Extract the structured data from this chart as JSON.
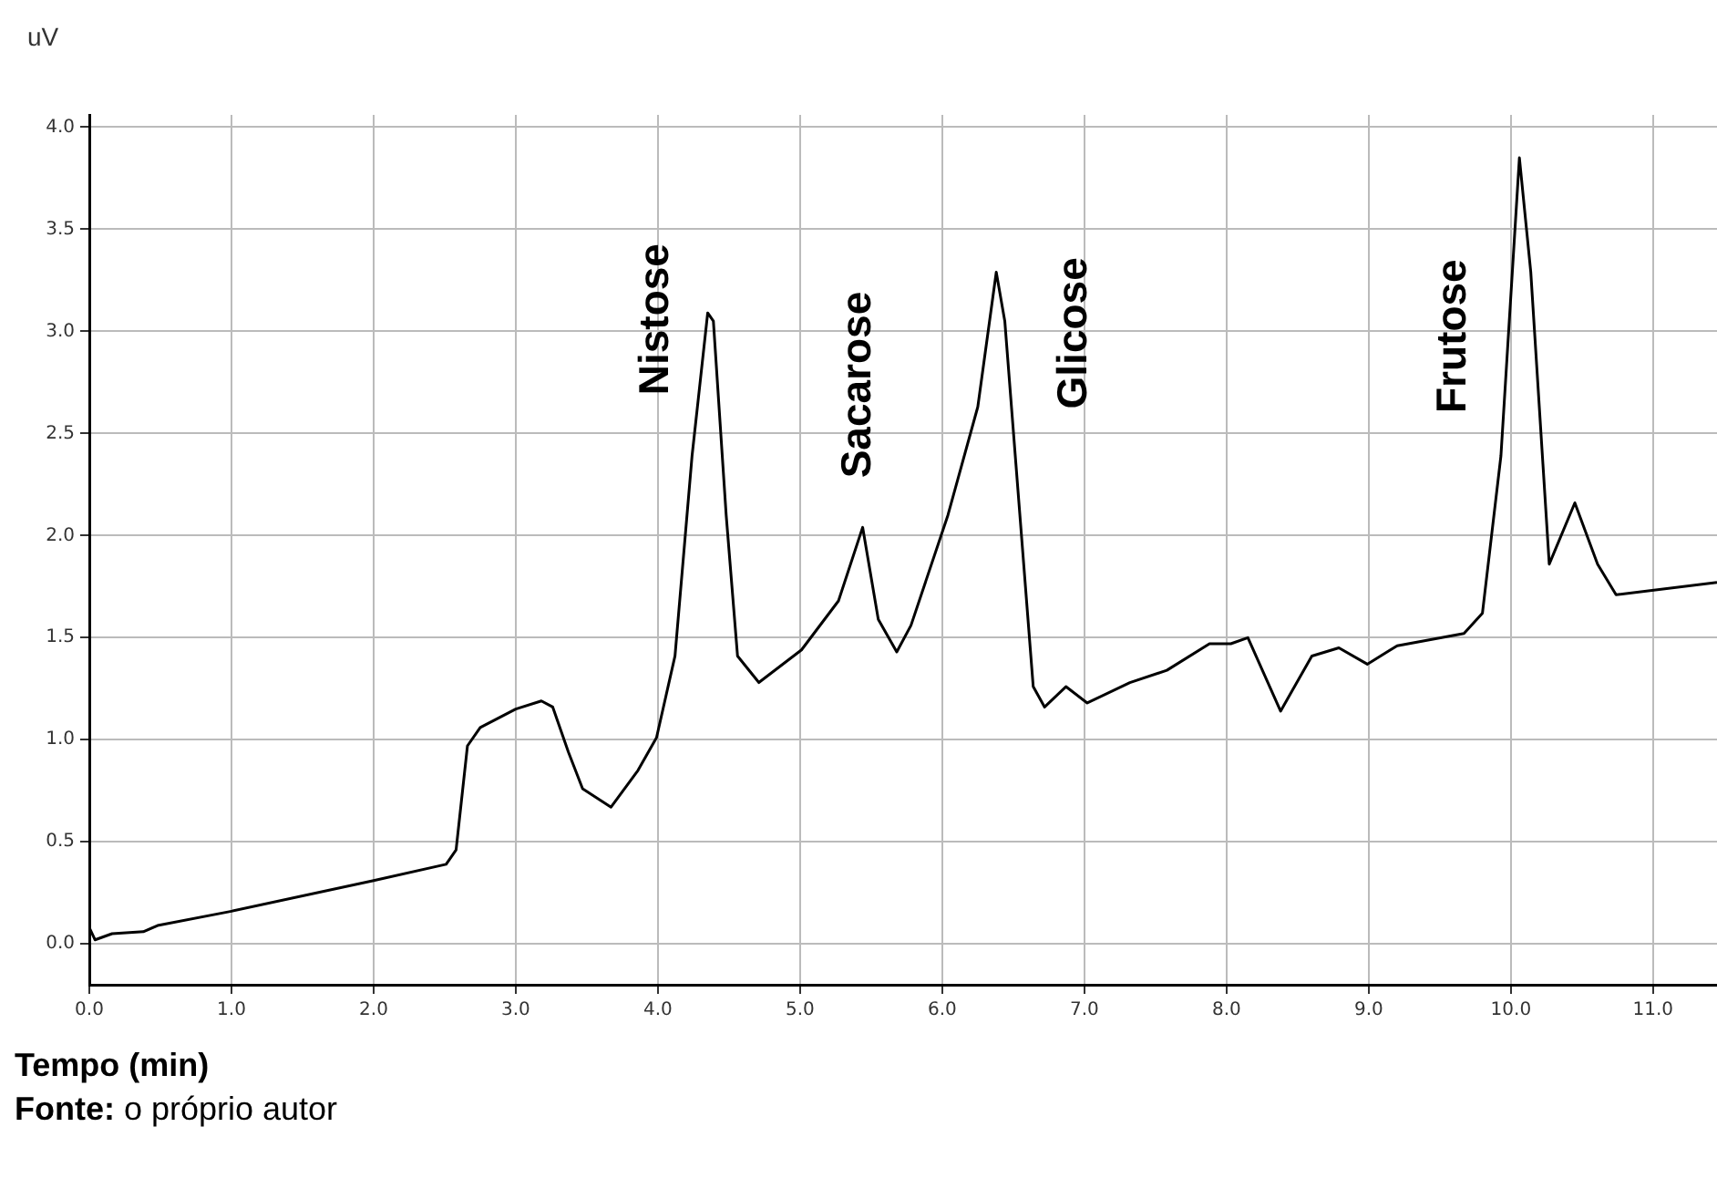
{
  "chart_data": {
    "type": "line",
    "xlabel": "Tempo (min)",
    "ylabel": "uV",
    "annotations": [
      {
        "text": "Nistose",
        "x": 4.35,
        "y": 3.09
      },
      {
        "text": "Sacarose",
        "x": 5.44,
        "y": 2.04
      },
      {
        "text": "Glicose",
        "x": 6.38,
        "y": 3.29
      },
      {
        "text": "Frutose",
        "x": 10.06,
        "y": 3.85
      },
      "Fonte: o próprio autor"
    ],
    "series": [
      {
        "color": "#000000",
        "x": [
          0,
          0.04,
          0.16,
          0.38,
          0.48,
          1.0,
          2.0,
          2.51,
          2.58,
          2.66,
          2.75,
          3.0,
          3.18,
          3.26,
          3.37,
          3.47,
          3.67,
          3.86,
          3.99,
          4.12,
          4.24,
          4.35,
          4.39,
          4.48,
          4.56,
          4.71,
          5.01,
          5.27,
          5.44,
          5.55,
          5.68,
          5.78,
          6.04,
          6.25,
          6.38,
          6.44,
          6.64,
          6.72,
          6.87,
          7.02,
          7.32,
          7.58,
          7.88,
          8.03,
          8.15,
          8.38,
          8.6,
          8.79,
          8.99,
          9.2,
          9.67,
          9.8,
          9.93,
          10.06,
          10.14,
          10.27,
          10.45,
          10.61,
          10.74,
          11.45
        ],
        "values": [
          0.08,
          0.02,
          0.05,
          0.06,
          0.09,
          0.16,
          0.31,
          0.39,
          0.46,
          0.97,
          1.06,
          1.15,
          1.19,
          1.16,
          0.94,
          0.76,
          0.67,
          0.85,
          1.01,
          1.41,
          2.39,
          3.09,
          3.05,
          2.1,
          1.41,
          1.28,
          1.44,
          1.68,
          2.04,
          1.59,
          1.43,
          1.56,
          2.1,
          2.63,
          3.29,
          3.05,
          1.26,
          1.16,
          1.26,
          1.18,
          1.28,
          1.34,
          1.47,
          1.47,
          1.5,
          1.14,
          1.41,
          1.45,
          1.37,
          1.46,
          1.52,
          1.62,
          2.39,
          3.85,
          3.29,
          1.86,
          2.16,
          1.86,
          1.71,
          1.77
        ]
      }
    ],
    "xlim": [
      0,
      11.45
    ],
    "ylim": [
      -0.2,
      4.06
    ],
    "xticks": [
      {
        "value": 0,
        "label": "0.0"
      },
      {
        "value": 1,
        "label": "1.0"
      },
      {
        "value": 2,
        "label": "2.0"
      },
      {
        "value": 3,
        "label": "3.0"
      },
      {
        "value": 4,
        "label": "4.0"
      },
      {
        "value": 5,
        "label": "5.0"
      },
      {
        "value": 6,
        "label": "6.0"
      },
      {
        "value": 7,
        "label": "7.0"
      },
      {
        "value": 8,
        "label": "8.0"
      },
      {
        "value": 9,
        "label": "9.0"
      },
      {
        "value": 10,
        "label": "10.0"
      },
      {
        "value": 11,
        "label": "11.0"
      }
    ],
    "yticks": [
      {
        "value": 0,
        "label": "0.0"
      },
      {
        "value": 0.5,
        "label": "0.5"
      },
      {
        "value": 1,
        "label": "1.0"
      },
      {
        "value": 1.5,
        "label": "1.5"
      },
      {
        "value": 2,
        "label": "2.0"
      },
      {
        "value": 2.5,
        "label": "2.5"
      },
      {
        "value": 3,
        "label": "3.0"
      },
      {
        "value": 3.5,
        "label": "3.5"
      },
      {
        "value": 4,
        "label": "4.0"
      }
    ],
    "grid": true,
    "legend": false,
    "marker": "none",
    "line_style": "solid"
  }
}
